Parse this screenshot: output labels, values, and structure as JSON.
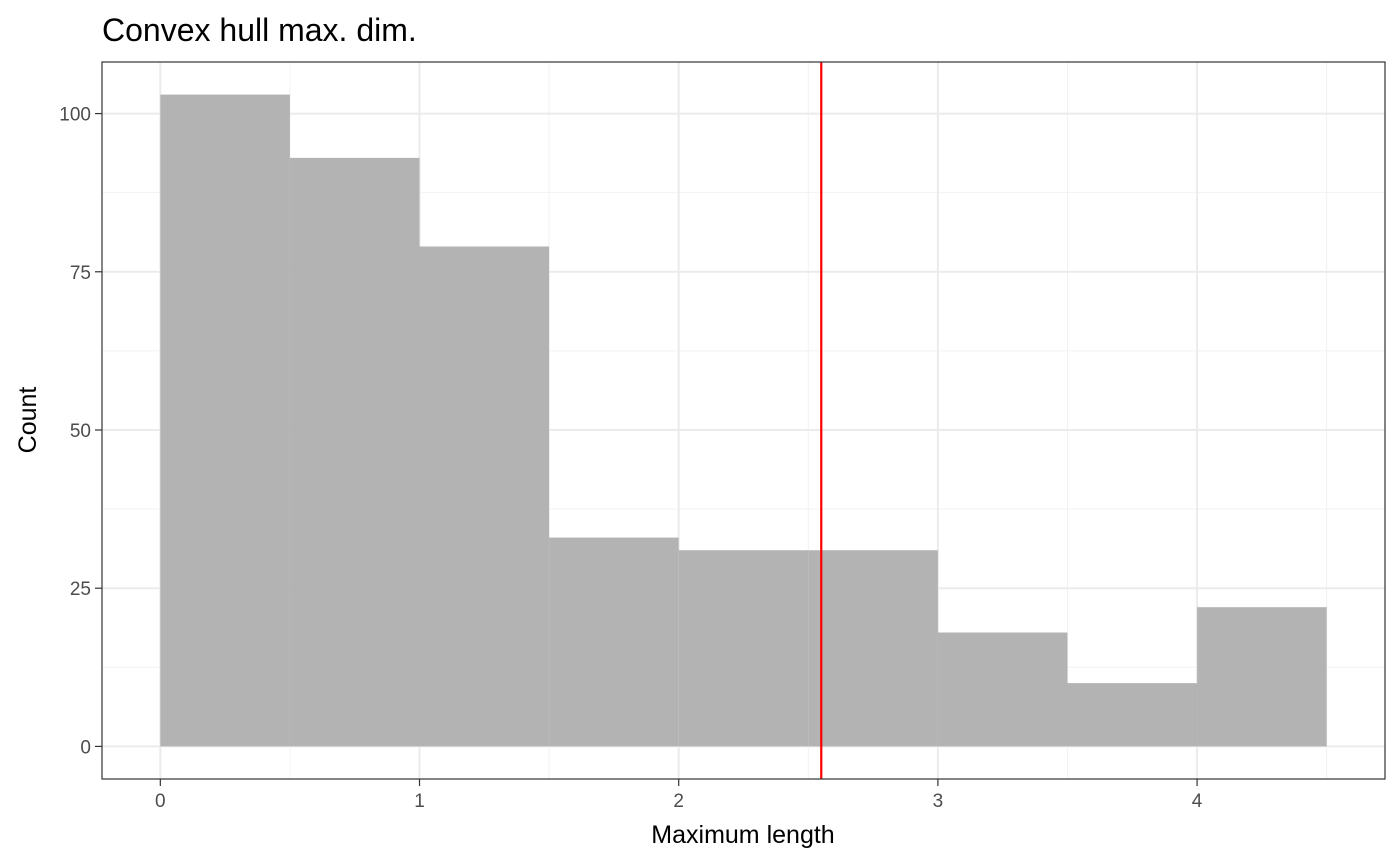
{
  "chart_data": {
    "type": "bar",
    "title": "Convex hull max. dim.",
    "xlabel": "Maximum length",
    "ylabel": "Count",
    "bins": [
      {
        "x0": 0.0,
        "x1": 0.5,
        "count": 103
      },
      {
        "x0": 0.5,
        "x1": 1.0,
        "count": 93
      },
      {
        "x0": 1.0,
        "x1": 1.5,
        "count": 79
      },
      {
        "x0": 1.5,
        "x1": 2.0,
        "count": 33
      },
      {
        "x0": 2.0,
        "x1": 2.5,
        "count": 31
      },
      {
        "x0": 2.5,
        "x1": 3.0,
        "count": 31
      },
      {
        "x0": 3.0,
        "x1": 3.5,
        "count": 18
      },
      {
        "x0": 3.5,
        "x1": 4.0,
        "count": 10
      },
      {
        "x0": 4.0,
        "x1": 4.5,
        "count": 22
      }
    ],
    "vline": {
      "x": 2.55,
      "color": "#ff0000"
    },
    "xlim": [
      -0.225,
      4.725
    ],
    "ylim": [
      -5.15,
      108.15
    ],
    "xticks": [
      0,
      1,
      2,
      3,
      4
    ],
    "xtick_labels": [
      "0",
      "1",
      "2",
      "3",
      "4"
    ],
    "xminor": [
      0.5,
      1.5,
      2.5,
      3.5,
      4.5
    ],
    "yticks": [
      0,
      25,
      50,
      75,
      100
    ],
    "ytick_labels": [
      "0",
      "25",
      "50",
      "75",
      "100"
    ],
    "yminor": [
      12.5,
      37.5,
      62.5,
      87.5
    ],
    "bar_color": "#b3b3b3",
    "grid": true
  }
}
